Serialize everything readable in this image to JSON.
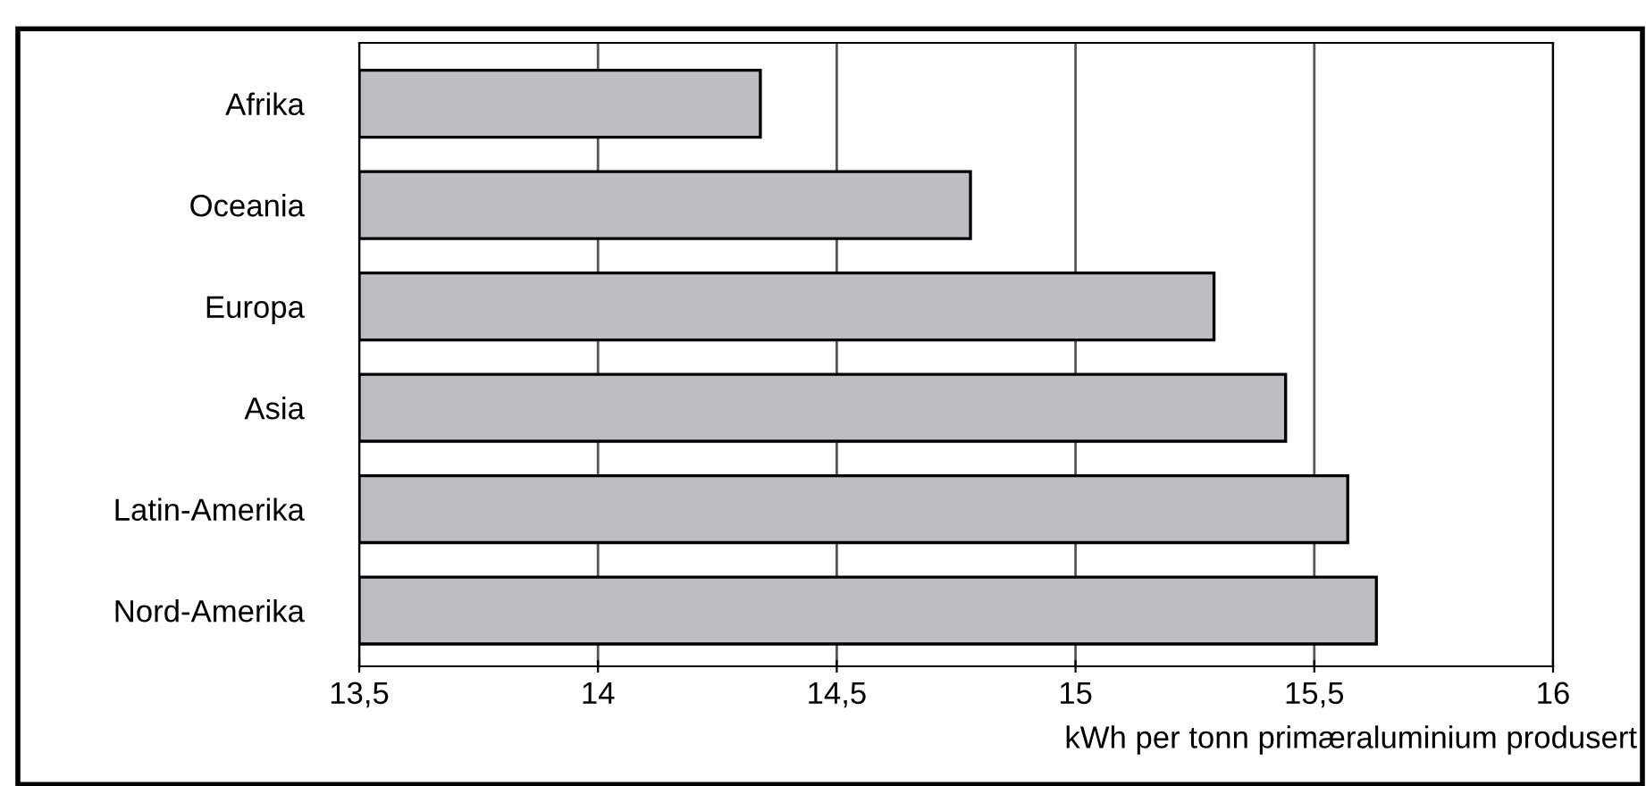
{
  "chart_data": {
    "type": "bar",
    "orientation": "horizontal",
    "xlabel": "kWh per tonn primæraluminium produsert",
    "categories": [
      "Afrika",
      "Oceania",
      "Europa",
      "Asia",
      "Latin-Amerika",
      "Nord-Amerika"
    ],
    "values": [
      14.34,
      14.78,
      15.29,
      15.44,
      15.57,
      15.63
    ],
    "color": "#bdbec2",
    "xlim": [
      13.5,
      16
    ],
    "xticks": [
      {
        "value": 13.5,
        "label": "13,5"
      },
      14,
      {
        "value": 14.5,
        "label": "14,5"
      },
      15,
      {
        "value": 15.5,
        "label": "15,5"
      },
      16
    ],
    "grid": "x",
    "legend": false
  }
}
